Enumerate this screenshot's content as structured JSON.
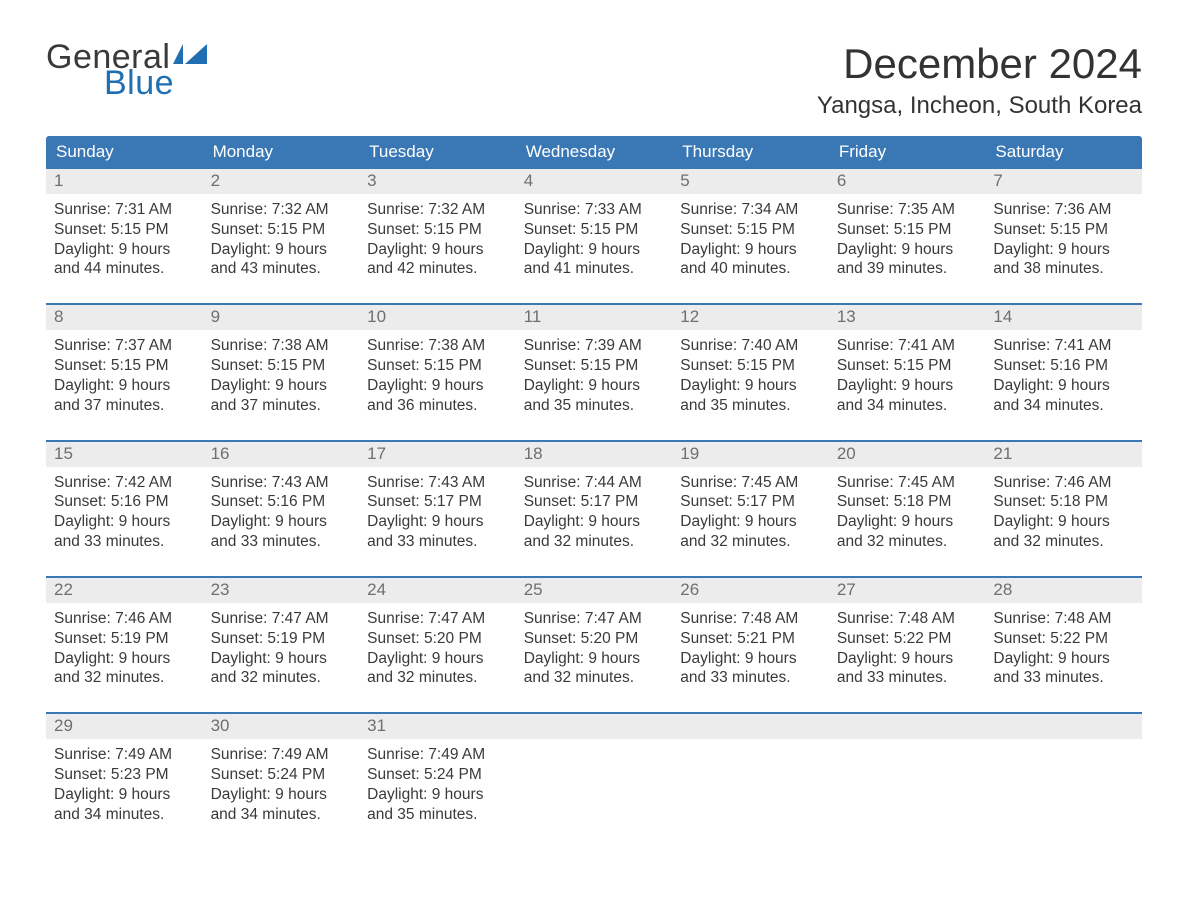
{
  "brand": {
    "word1": "General",
    "word2": "Blue",
    "flag_color": "#1f6fb2"
  },
  "title": "December 2024",
  "location": "Yangsa, Incheon, South Korea",
  "colors": {
    "header_bg": "#3a78b5",
    "header_text": "#ffffff",
    "daynum_bg": "#ececec",
    "daynum_text": "#6f6f6f",
    "body_text": "#3a3a3a",
    "week_border": "#3a78b5",
    "page_bg": "#ffffff"
  },
  "weekdays": [
    "Sunday",
    "Monday",
    "Tuesday",
    "Wednesday",
    "Thursday",
    "Friday",
    "Saturday"
  ],
  "labels": {
    "sunrise": "Sunrise:",
    "sunset": "Sunset:",
    "daylight": "Daylight:"
  },
  "weeks": [
    [
      {
        "n": "1",
        "sr": "7:31 AM",
        "ss": "5:15 PM",
        "dl": "9 hours and 44 minutes."
      },
      {
        "n": "2",
        "sr": "7:32 AM",
        "ss": "5:15 PM",
        "dl": "9 hours and 43 minutes."
      },
      {
        "n": "3",
        "sr": "7:32 AM",
        "ss": "5:15 PM",
        "dl": "9 hours and 42 minutes."
      },
      {
        "n": "4",
        "sr": "7:33 AM",
        "ss": "5:15 PM",
        "dl": "9 hours and 41 minutes."
      },
      {
        "n": "5",
        "sr": "7:34 AM",
        "ss": "5:15 PM",
        "dl": "9 hours and 40 minutes."
      },
      {
        "n": "6",
        "sr": "7:35 AM",
        "ss": "5:15 PM",
        "dl": "9 hours and 39 minutes."
      },
      {
        "n": "7",
        "sr": "7:36 AM",
        "ss": "5:15 PM",
        "dl": "9 hours and 38 minutes."
      }
    ],
    [
      {
        "n": "8",
        "sr": "7:37 AM",
        "ss": "5:15 PM",
        "dl": "9 hours and 37 minutes."
      },
      {
        "n": "9",
        "sr": "7:38 AM",
        "ss": "5:15 PM",
        "dl": "9 hours and 37 minutes."
      },
      {
        "n": "10",
        "sr": "7:38 AM",
        "ss": "5:15 PM",
        "dl": "9 hours and 36 minutes."
      },
      {
        "n": "11",
        "sr": "7:39 AM",
        "ss": "5:15 PM",
        "dl": "9 hours and 35 minutes."
      },
      {
        "n": "12",
        "sr": "7:40 AM",
        "ss": "5:15 PM",
        "dl": "9 hours and 35 minutes."
      },
      {
        "n": "13",
        "sr": "7:41 AM",
        "ss": "5:15 PM",
        "dl": "9 hours and 34 minutes."
      },
      {
        "n": "14",
        "sr": "7:41 AM",
        "ss": "5:16 PM",
        "dl": "9 hours and 34 minutes."
      }
    ],
    [
      {
        "n": "15",
        "sr": "7:42 AM",
        "ss": "5:16 PM",
        "dl": "9 hours and 33 minutes."
      },
      {
        "n": "16",
        "sr": "7:43 AM",
        "ss": "5:16 PM",
        "dl": "9 hours and 33 minutes."
      },
      {
        "n": "17",
        "sr": "7:43 AM",
        "ss": "5:17 PM",
        "dl": "9 hours and 33 minutes."
      },
      {
        "n": "18",
        "sr": "7:44 AM",
        "ss": "5:17 PM",
        "dl": "9 hours and 32 minutes."
      },
      {
        "n": "19",
        "sr": "7:45 AM",
        "ss": "5:17 PM",
        "dl": "9 hours and 32 minutes."
      },
      {
        "n": "20",
        "sr": "7:45 AM",
        "ss": "5:18 PM",
        "dl": "9 hours and 32 minutes."
      },
      {
        "n": "21",
        "sr": "7:46 AM",
        "ss": "5:18 PM",
        "dl": "9 hours and 32 minutes."
      }
    ],
    [
      {
        "n": "22",
        "sr": "7:46 AM",
        "ss": "5:19 PM",
        "dl": "9 hours and 32 minutes."
      },
      {
        "n": "23",
        "sr": "7:47 AM",
        "ss": "5:19 PM",
        "dl": "9 hours and 32 minutes."
      },
      {
        "n": "24",
        "sr": "7:47 AM",
        "ss": "5:20 PM",
        "dl": "9 hours and 32 minutes."
      },
      {
        "n": "25",
        "sr": "7:47 AM",
        "ss": "5:20 PM",
        "dl": "9 hours and 32 minutes."
      },
      {
        "n": "26",
        "sr": "7:48 AM",
        "ss": "5:21 PM",
        "dl": "9 hours and 33 minutes."
      },
      {
        "n": "27",
        "sr": "7:48 AM",
        "ss": "5:22 PM",
        "dl": "9 hours and 33 minutes."
      },
      {
        "n": "28",
        "sr": "7:48 AM",
        "ss": "5:22 PM",
        "dl": "9 hours and 33 minutes."
      }
    ],
    [
      {
        "n": "29",
        "sr": "7:49 AM",
        "ss": "5:23 PM",
        "dl": "9 hours and 34 minutes."
      },
      {
        "n": "30",
        "sr": "7:49 AM",
        "ss": "5:24 PM",
        "dl": "9 hours and 34 minutes."
      },
      {
        "n": "31",
        "sr": "7:49 AM",
        "ss": "5:24 PM",
        "dl": "9 hours and 35 minutes."
      },
      null,
      null,
      null,
      null
    ]
  ]
}
